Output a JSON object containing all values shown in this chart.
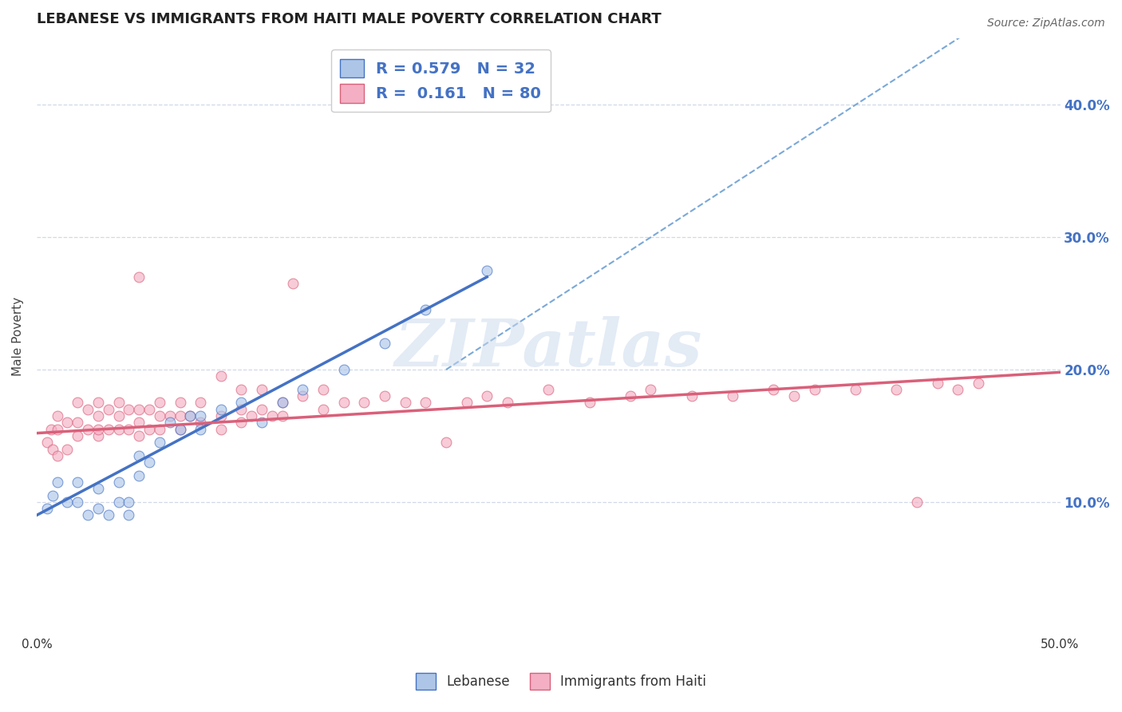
{
  "title": "LEBANESE VS IMMIGRANTS FROM HAITI MALE POVERTY CORRELATION CHART",
  "source": "Source: ZipAtlas.com",
  "ylabel": "Male Poverty",
  "right_ytick_labels": [
    "10.0%",
    "20.0%",
    "30.0%",
    "40.0%"
  ],
  "right_ytick_values": [
    0.1,
    0.2,
    0.3,
    0.4
  ],
  "xlim": [
    0.0,
    0.5
  ],
  "ylim": [
    0.0,
    0.45
  ],
  "legend_r1": "R = 0.579",
  "legend_n1": "N = 32",
  "legend_r2": "R =  0.161",
  "legend_n2": "N = 80",
  "blue_color": "#adc6e8",
  "blue_line_color": "#4472c4",
  "pink_color": "#f4afc4",
  "pink_line_color": "#d9607a",
  "ref_line_color": "#7aa8d8",
  "label1": "Lebanese",
  "label2": "Immigrants from Haiti",
  "blue_scatter_x": [
    0.005,
    0.008,
    0.01,
    0.015,
    0.02,
    0.02,
    0.025,
    0.03,
    0.03,
    0.035,
    0.04,
    0.04,
    0.045,
    0.045,
    0.05,
    0.05,
    0.055,
    0.06,
    0.065,
    0.07,
    0.075,
    0.08,
    0.08,
    0.09,
    0.1,
    0.11,
    0.12,
    0.13,
    0.15,
    0.17,
    0.19,
    0.22
  ],
  "blue_scatter_y": [
    0.095,
    0.105,
    0.115,
    0.1,
    0.1,
    0.115,
    0.09,
    0.095,
    0.11,
    0.09,
    0.1,
    0.115,
    0.09,
    0.1,
    0.12,
    0.135,
    0.13,
    0.145,
    0.16,
    0.155,
    0.165,
    0.155,
    0.165,
    0.17,
    0.175,
    0.16,
    0.175,
    0.185,
    0.2,
    0.22,
    0.245,
    0.275
  ],
  "pink_scatter_x": [
    0.005,
    0.007,
    0.008,
    0.01,
    0.01,
    0.01,
    0.015,
    0.015,
    0.02,
    0.02,
    0.02,
    0.025,
    0.025,
    0.03,
    0.03,
    0.03,
    0.03,
    0.035,
    0.035,
    0.04,
    0.04,
    0.04,
    0.045,
    0.045,
    0.05,
    0.05,
    0.05,
    0.05,
    0.055,
    0.055,
    0.06,
    0.06,
    0.06,
    0.065,
    0.07,
    0.07,
    0.07,
    0.075,
    0.08,
    0.08,
    0.09,
    0.09,
    0.09,
    0.1,
    0.1,
    0.1,
    0.105,
    0.11,
    0.11,
    0.115,
    0.12,
    0.12,
    0.125,
    0.13,
    0.14,
    0.14,
    0.15,
    0.16,
    0.17,
    0.18,
    0.19,
    0.2,
    0.21,
    0.22,
    0.23,
    0.25,
    0.27,
    0.29,
    0.3,
    0.32,
    0.34,
    0.36,
    0.37,
    0.38,
    0.4,
    0.42,
    0.43,
    0.44,
    0.45,
    0.46
  ],
  "pink_scatter_y": [
    0.145,
    0.155,
    0.14,
    0.135,
    0.155,
    0.165,
    0.14,
    0.16,
    0.15,
    0.16,
    0.175,
    0.155,
    0.17,
    0.15,
    0.155,
    0.165,
    0.175,
    0.155,
    0.17,
    0.155,
    0.165,
    0.175,
    0.155,
    0.17,
    0.15,
    0.16,
    0.17,
    0.27,
    0.155,
    0.17,
    0.155,
    0.165,
    0.175,
    0.165,
    0.155,
    0.165,
    0.175,
    0.165,
    0.16,
    0.175,
    0.155,
    0.165,
    0.195,
    0.16,
    0.17,
    0.185,
    0.165,
    0.17,
    0.185,
    0.165,
    0.165,
    0.175,
    0.265,
    0.18,
    0.17,
    0.185,
    0.175,
    0.175,
    0.18,
    0.175,
    0.175,
    0.145,
    0.175,
    0.18,
    0.175,
    0.185,
    0.175,
    0.18,
    0.185,
    0.18,
    0.18,
    0.185,
    0.18,
    0.185,
    0.185,
    0.185,
    0.1,
    0.19,
    0.185,
    0.19
  ],
  "blue_trend_x": [
    0.0,
    0.22
  ],
  "blue_trend_y": [
    0.09,
    0.27
  ],
  "pink_trend_x": [
    0.0,
    0.5
  ],
  "pink_trend_y": [
    0.152,
    0.198
  ],
  "ref_line_x": [
    0.2,
    0.5
  ],
  "ref_line_y": [
    0.2,
    0.5
  ],
  "watermark": "ZIPatlas",
  "title_fontsize": 13,
  "source_fontsize": 10,
  "marker_size": 85,
  "marker_alpha": 0.65,
  "grid_color": "#d0d8e8",
  "background_color": "#ffffff"
}
